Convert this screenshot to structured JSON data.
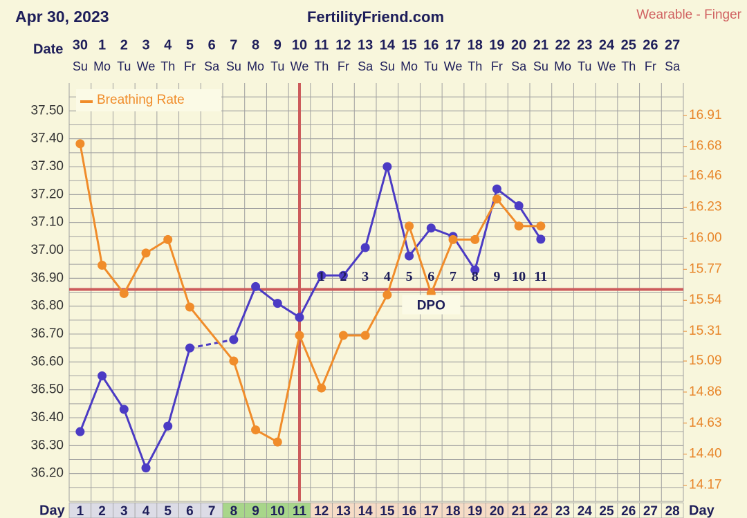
{
  "chart_data": {
    "type": "line",
    "title": "FertilityFriend.com",
    "date": "Apr 30, 2023",
    "subtitle": "Wearable - Finger",
    "date_label": "Date",
    "day_label": "Day",
    "dates": [
      "30",
      "1",
      "2",
      "3",
      "4",
      "5",
      "6",
      "7",
      "8",
      "9",
      "10",
      "11",
      "12",
      "13",
      "14",
      "15",
      "16",
      "17",
      "18",
      "19",
      "20",
      "21",
      "22",
      "23",
      "24",
      "25",
      "26",
      "27"
    ],
    "weekdays": [
      "Su",
      "Mo",
      "Tu",
      "We",
      "Th",
      "Fr",
      "Sa",
      "Su",
      "Mo",
      "Tu",
      "We",
      "Th",
      "Fr",
      "Sa",
      "Su",
      "Mo",
      "Tu",
      "We",
      "Th",
      "Fr",
      "Sa",
      "Su",
      "Mo",
      "Tu",
      "We",
      "Th",
      "Fr",
      "Sa"
    ],
    "x": [
      1,
      2,
      3,
      4,
      5,
      6,
      7,
      8,
      9,
      10,
      11,
      12,
      13,
      14,
      15,
      16,
      17,
      18,
      19,
      20,
      21,
      22,
      23,
      24,
      25,
      26,
      27,
      28
    ],
    "day_colors": [
      "#dcdce6",
      "#dcdce6",
      "#dcdce6",
      "#dcdce6",
      "#dcdce6",
      "#dcdce6",
      "#dcdce6",
      "#a8d68a",
      "#a8d68a",
      "#a8d68a",
      "#a8d68a",
      "#f6dcc6",
      "#f6dcc6",
      "#f6dcc6",
      "#f6dcc6",
      "#f6dcc6",
      "#f6dcc6",
      "#f6dcc6",
      "#f6dcc6",
      "#f6dcc6",
      "#f6dcc6",
      "#f6dcc6",
      "#f8f6dc",
      "#f8f6dc",
      "#f8f6dc",
      "#f8f6dc",
      "#f8f6dc",
      "#f8f6dc"
    ],
    "xlim": [
      0.5,
      28.5
    ],
    "ylim": [
      36.1,
      37.6
    ],
    "yticks": [
      {
        "value": 37.5,
        "label": "37.50"
      },
      {
        "value": 37.4,
        "label": "37.40"
      },
      {
        "value": 37.3,
        "label": "37.30"
      },
      {
        "value": 37.2,
        "label": "37.20"
      },
      {
        "value": 37.1,
        "label": "37.10"
      },
      {
        "value": 37.0,
        "label": "37.00"
      },
      {
        "value": 36.9,
        "label": "36.90"
      },
      {
        "value": 36.8,
        "label": "36.80"
      },
      {
        "value": 36.7,
        "label": "36.70"
      },
      {
        "value": 36.6,
        "label": "36.60"
      },
      {
        "value": 36.5,
        "label": "36.50"
      },
      {
        "value": 36.4,
        "label": "36.40"
      },
      {
        "value": 36.3,
        "label": "36.30"
      },
      {
        "value": 36.2,
        "label": "36.20"
      }
    ],
    "y2lim": [
      14.05,
      17.15
    ],
    "y2ticks": [
      16.91,
      16.68,
      16.46,
      16.23,
      {
        "value": 16.0,
        "label": "16.00"
      },
      15.77,
      15.54,
      15.31,
      15.09,
      14.86,
      14.63,
      {
        "value": 14.4,
        "label": "14.40"
      },
      14.17
    ],
    "grid": true,
    "coverline": 36.86,
    "coverline_color": "#cc5b5b",
    "ovulation_day": 11,
    "dpo_start_day": 12,
    "dpo_labels": [
      1,
      2,
      3,
      4,
      5,
      6,
      7,
      8,
      9,
      10,
      11
    ],
    "dpo_title": "DPO",
    "legend": "upper left",
    "series": [
      {
        "color": "#4b3bc4",
        "gap_line": "dashed",
        "values": [
          36.35,
          36.55,
          36.43,
          36.22,
          36.37,
          36.65,
          null,
          36.68,
          36.87,
          36.81,
          36.76,
          36.91,
          36.91,
          37.01,
          37.3,
          36.98,
          37.08,
          37.05,
          36.93,
          37.22,
          37.16,
          37.04,
          null,
          null,
          null,
          null,
          null,
          null
        ]
      },
      {
        "name": "Breathing Rate",
        "color": "#f08c2a",
        "axis": "y2",
        "gap_line": "solid",
        "values": [
          16.7,
          15.8,
          15.59,
          15.89,
          15.99,
          15.49,
          null,
          15.09,
          14.58,
          14.49,
          15.28,
          14.89,
          15.28,
          15.28,
          15.58,
          16.09,
          15.59,
          15.99,
          15.99,
          16.29,
          16.09,
          16.09,
          null,
          null,
          null,
          null,
          null,
          null
        ]
      }
    ]
  }
}
